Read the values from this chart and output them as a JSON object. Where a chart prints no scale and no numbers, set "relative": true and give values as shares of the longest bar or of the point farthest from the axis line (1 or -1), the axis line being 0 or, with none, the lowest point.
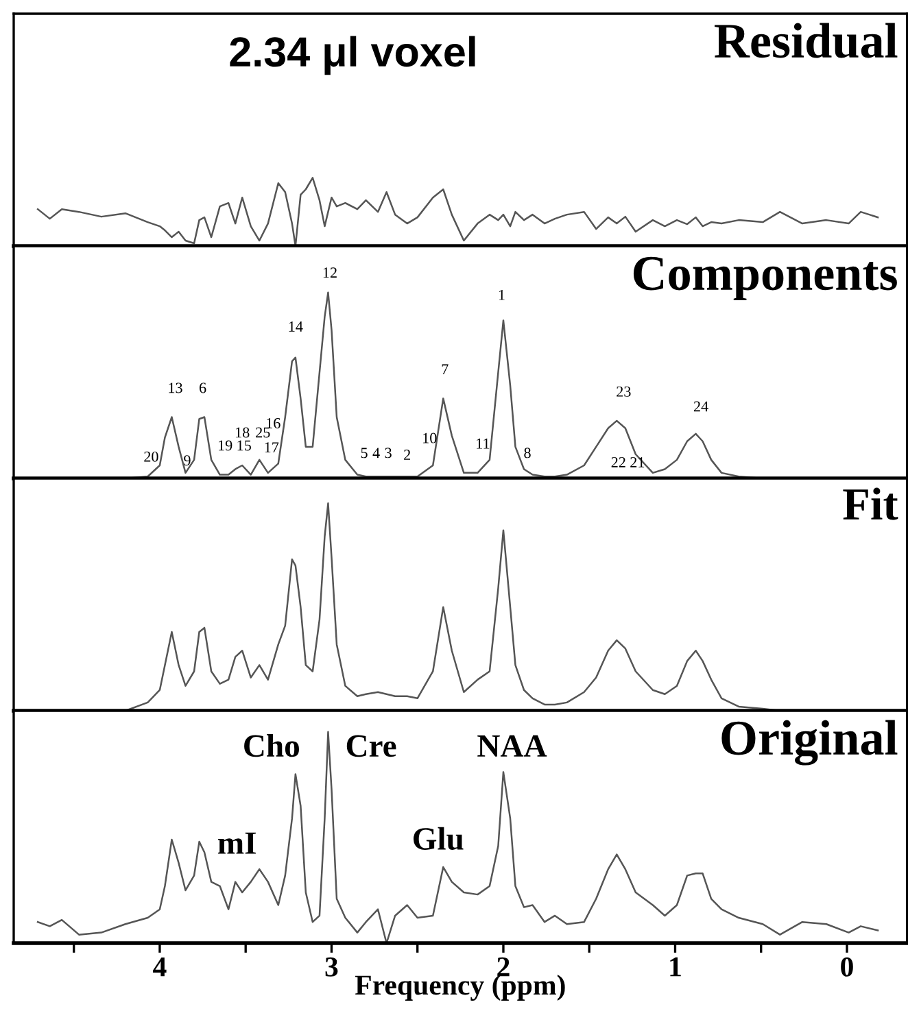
{
  "chart_data": [
    {
      "type": "line",
      "title": "Residual",
      "relative": true,
      "xlim": [
        4.85,
        -0.35
      ],
      "color": "#555555",
      "grid": false,
      "annotations": [
        "2.34 μl voxel"
      ],
      "x": [
        4.71,
        4.64,
        4.57,
        4.47,
        4.34,
        4.2,
        4.07,
        4.0,
        3.97,
        3.93,
        3.89,
        3.85,
        3.8,
        3.77,
        3.74,
        3.7,
        3.65,
        3.6,
        3.56,
        3.52,
        3.47,
        3.42,
        3.37,
        3.31,
        3.27,
        3.23,
        3.21,
        3.18,
        3.15,
        3.11,
        3.07,
        3.04,
        3.02,
        3.0,
        2.97,
        2.92,
        2.85,
        2.8,
        2.73,
        2.68,
        2.63,
        2.56,
        2.5,
        2.41,
        2.35,
        2.3,
        2.23,
        2.15,
        2.08,
        2.03,
        2.0,
        1.96,
        1.93,
        1.88,
        1.83,
        1.76,
        1.7,
        1.63,
        1.53,
        1.46,
        1.39,
        1.34,
        1.29,
        1.23,
        1.13,
        1.06,
        0.99,
        0.93,
        0.88,
        0.84,
        0.79,
        0.73,
        0.63,
        0.49,
        0.39,
        0.26,
        0.12,
        -0.01,
        -0.08,
        -0.18
      ],
      "values": [
        0.54,
        0.4,
        0.54,
        0.5,
        0.43,
        0.48,
        0.35,
        0.29,
        0.23,
        0.13,
        0.21,
        0.08,
        0.04,
        0.38,
        0.42,
        0.13,
        0.58,
        0.63,
        0.33,
        0.71,
        0.29,
        0.08,
        0.33,
        0.92,
        0.79,
        0.33,
        0.0,
        0.75,
        0.83,
        1.0,
        0.67,
        0.29,
        0.5,
        0.71,
        0.58,
        0.63,
        0.54,
        0.67,
        0.5,
        0.79,
        0.46,
        0.33,
        0.42,
        0.71,
        0.83,
        0.46,
        0.08,
        0.33,
        0.46,
        0.38,
        0.46,
        0.29,
        0.5,
        0.38,
        0.46,
        0.33,
        0.4,
        0.46,
        0.5,
        0.25,
        0.42,
        0.33,
        0.43,
        0.21,
        0.38,
        0.29,
        0.38,
        0.32,
        0.42,
        0.29,
        0.35,
        0.33,
        0.38,
        0.35,
        0.5,
        0.33,
        0.38,
        0.33,
        0.5,
        0.42
      ]
    },
    {
      "type": "line",
      "title": "Components",
      "relative": true,
      "xlim": [
        4.85,
        -0.35
      ],
      "color": "#555555",
      "grid": false,
      "annotations": [
        "20",
        "13",
        "9",
        "6",
        "19",
        "15",
        "18",
        "25",
        "16",
        "17",
        "14",
        "12",
        "5",
        "4",
        "3",
        "2",
        "10",
        "7",
        "11",
        "1",
        "8",
        "23",
        "22",
        "21",
        "24"
      ],
      "x": [
        4.71,
        4.64,
        4.57,
        4.47,
        4.34,
        4.2,
        4.07,
        4.0,
        3.97,
        3.93,
        3.89,
        3.85,
        3.8,
        3.77,
        3.74,
        3.7,
        3.65,
        3.6,
        3.56,
        3.52,
        3.47,
        3.42,
        3.37,
        3.31,
        3.27,
        3.23,
        3.21,
        3.18,
        3.15,
        3.11,
        3.07,
        3.04,
        3.02,
        3.0,
        2.97,
        2.92,
        2.85,
        2.8,
        2.73,
        2.68,
        2.63,
        2.56,
        2.5,
        2.41,
        2.35,
        2.3,
        2.23,
        2.15,
        2.08,
        2.03,
        2.0,
        1.96,
        1.93,
        1.88,
        1.83,
        1.76,
        1.7,
        1.63,
        1.53,
        1.46,
        1.39,
        1.34,
        1.29,
        1.23,
        1.13,
        1.06,
        0.99,
        0.93,
        0.88,
        0.84,
        0.79,
        0.73,
        0.63,
        0.49,
        0.39,
        0.26,
        0.12,
        -0.01,
        -0.08,
        -0.18
      ],
      "values": [
        0,
        0,
        0,
        0,
        0,
        0,
        0.01,
        0.07,
        0.22,
        0.33,
        0.17,
        0.03,
        0.1,
        0.32,
        0.33,
        0.1,
        0.02,
        0.02,
        0.05,
        0.07,
        0.02,
        0.1,
        0.03,
        0.08,
        0.33,
        0.63,
        0.65,
        0.43,
        0.17,
        0.17,
        0.57,
        0.87,
        1.0,
        0.8,
        0.33,
        0.1,
        0.02,
        0.01,
        0.01,
        0.01,
        0.01,
        0.01,
        0.01,
        0.07,
        0.43,
        0.23,
        0.03,
        0.03,
        0.1,
        0.57,
        0.85,
        0.5,
        0.17,
        0.05,
        0.02,
        0.01,
        0.01,
        0.02,
        0.07,
        0.17,
        0.27,
        0.31,
        0.27,
        0.13,
        0.03,
        0.05,
        0.1,
        0.2,
        0.24,
        0.2,
        0.1,
        0.03,
        0.01,
        0,
        0,
        0,
        0,
        0,
        0,
        0
      ]
    },
    {
      "type": "line",
      "title": "Fit",
      "relative": true,
      "xlim": [
        4.85,
        -0.35
      ],
      "color": "#555555",
      "grid": false,
      "x": [
        4.71,
        4.64,
        4.57,
        4.47,
        4.34,
        4.2,
        4.07,
        4.0,
        3.97,
        3.93,
        3.89,
        3.85,
        3.8,
        3.77,
        3.74,
        3.7,
        3.65,
        3.6,
        3.56,
        3.52,
        3.47,
        3.42,
        3.37,
        3.31,
        3.27,
        3.23,
        3.21,
        3.18,
        3.15,
        3.11,
        3.07,
        3.04,
        3.02,
        3.0,
        2.97,
        2.92,
        2.85,
        2.8,
        2.73,
        2.68,
        2.63,
        2.56,
        2.5,
        2.41,
        2.35,
        2.3,
        2.23,
        2.15,
        2.08,
        2.03,
        2.0,
        1.96,
        1.93,
        1.88,
        1.83,
        1.76,
        1.7,
        1.63,
        1.53,
        1.46,
        1.39,
        1.34,
        1.29,
        1.23,
        1.13,
        1.06,
        0.99,
        0.93,
        0.88,
        0.84,
        0.79,
        0.73,
        0.63,
        0.49,
        0.39,
        0.26,
        0.12,
        -0.01,
        -0.08,
        -0.18
      ],
      "values": [
        0,
        0,
        0,
        0,
        0,
        0,
        0.04,
        0.1,
        0.22,
        0.38,
        0.22,
        0.12,
        0.19,
        0.38,
        0.4,
        0.19,
        0.13,
        0.15,
        0.26,
        0.29,
        0.16,
        0.22,
        0.15,
        0.32,
        0.41,
        0.73,
        0.7,
        0.5,
        0.22,
        0.19,
        0.44,
        0.84,
        1.0,
        0.74,
        0.32,
        0.12,
        0.07,
        0.08,
        0.09,
        0.08,
        0.07,
        0.07,
        0.06,
        0.19,
        0.5,
        0.29,
        0.09,
        0.15,
        0.19,
        0.59,
        0.87,
        0.5,
        0.22,
        0.1,
        0.06,
        0.03,
        0.03,
        0.04,
        0.09,
        0.16,
        0.29,
        0.34,
        0.3,
        0.19,
        0.1,
        0.08,
        0.12,
        0.24,
        0.29,
        0.24,
        0.15,
        0.06,
        0.02,
        0.01,
        0,
        0,
        0,
        0,
        0,
        0
      ]
    },
    {
      "type": "line",
      "title": "Original",
      "relative": true,
      "xlabel": "Frequency (ppm)",
      "xlim": [
        4.85,
        -0.35
      ],
      "color": "#555555",
      "grid": false,
      "xticks": [
        4,
        3,
        2,
        1,
        0,
        {
          "value": 4.5,
          "label": null
        },
        {
          "value": 3.5,
          "label": null
        },
        {
          "value": 2.5,
          "label": null
        },
        {
          "value": 1.5,
          "label": null
        },
        {
          "value": 0.5,
          "label": null
        }
      ],
      "annotations": [
        "Cho",
        "Cre",
        "NAA",
        "mI",
        "Glu"
      ],
      "x": [
        4.71,
        4.64,
        4.57,
        4.47,
        4.34,
        4.2,
        4.07,
        4.0,
        3.97,
        3.93,
        3.89,
        3.85,
        3.8,
        3.77,
        3.74,
        3.7,
        3.65,
        3.6,
        3.56,
        3.52,
        3.47,
        3.42,
        3.37,
        3.31,
        3.27,
        3.23,
        3.21,
        3.18,
        3.15,
        3.11,
        3.07,
        3.04,
        3.02,
        3.0,
        2.97,
        2.92,
        2.85,
        2.8,
        2.73,
        2.68,
        2.63,
        2.56,
        2.5,
        2.41,
        2.35,
        2.3,
        2.23,
        2.15,
        2.08,
        2.03,
        2.0,
        1.96,
        1.93,
        1.88,
        1.83,
        1.76,
        1.7,
        1.63,
        1.53,
        1.46,
        1.39,
        1.34,
        1.29,
        1.23,
        1.13,
        1.06,
        0.99,
        0.93,
        0.88,
        0.84,
        0.79,
        0.73,
        0.63,
        0.49,
        0.39,
        0.26,
        0.12,
        -0.01,
        -0.08,
        -0.18
      ],
      "values": [
        0.1,
        0.08,
        0.11,
        0.04,
        0.05,
        0.09,
        0.12,
        0.16,
        0.27,
        0.49,
        0.38,
        0.25,
        0.32,
        0.48,
        0.43,
        0.29,
        0.27,
        0.16,
        0.29,
        0.24,
        0.29,
        0.35,
        0.29,
        0.18,
        0.32,
        0.59,
        0.8,
        0.65,
        0.24,
        0.1,
        0.13,
        0.59,
        1.0,
        0.73,
        0.21,
        0.12,
        0.05,
        0.1,
        0.16,
        0.0,
        0.13,
        0.18,
        0.12,
        0.13,
        0.36,
        0.29,
        0.24,
        0.23,
        0.27,
        0.46,
        0.81,
        0.59,
        0.27,
        0.17,
        0.18,
        0.1,
        0.13,
        0.09,
        0.1,
        0.21,
        0.35,
        0.42,
        0.35,
        0.24,
        0.18,
        0.13,
        0.18,
        0.32,
        0.33,
        0.33,
        0.21,
        0.16,
        0.12,
        0.09,
        0.04,
        0.1,
        0.09,
        0.05,
        0.08,
        0.06
      ]
    }
  ]
}
